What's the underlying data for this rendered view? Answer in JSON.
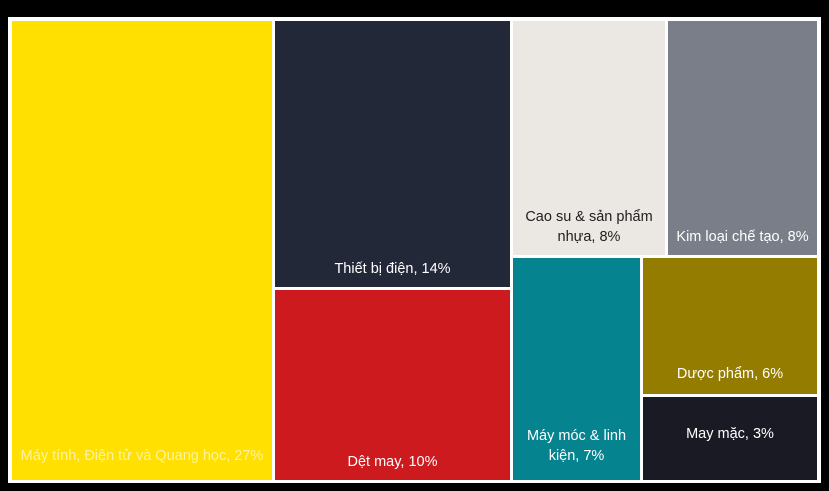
{
  "chart_data": {
    "type": "treemap",
    "title": "",
    "items": [
      {
        "key": "computers",
        "label": "Máy tính, Điện tử và Quang học, 27%",
        "value": 27,
        "color": "#FFE000",
        "text_color": "#FFF3A0"
      },
      {
        "key": "electrical",
        "label": "Thiết bị điện, 14%",
        "value": 14,
        "color": "#232839",
        "text_color": "#FFFFFF"
      },
      {
        "key": "textile",
        "label": "Dệt may, 10%",
        "value": 10,
        "color": "#CC1A1E",
        "text_color": "#FFFFFF"
      },
      {
        "key": "rubber",
        "label": "Cao su & sản phẩm nhựa, 8%",
        "value": 8,
        "color": "#EBE7E2",
        "text_color": "#1E1E1E"
      },
      {
        "key": "metal",
        "label": "Kim loại chế tạo, 8%",
        "value": 8,
        "color": "#797E89",
        "text_color": "#FFFFFF"
      },
      {
        "key": "machinery",
        "label": "Máy móc & linh kiện, 7%",
        "value": 7,
        "color": "#05838F",
        "text_color": "#FFFFFF"
      },
      {
        "key": "pharma",
        "label": "Dược phẩm, 6%",
        "value": 6,
        "color": "#947C00",
        "text_color": "#FFFFFF"
      },
      {
        "key": "garment",
        "label": "May mặc, 3%",
        "value": 3,
        "color": "#1A1A24",
        "text_color": "#FFFFFF"
      }
    ]
  }
}
